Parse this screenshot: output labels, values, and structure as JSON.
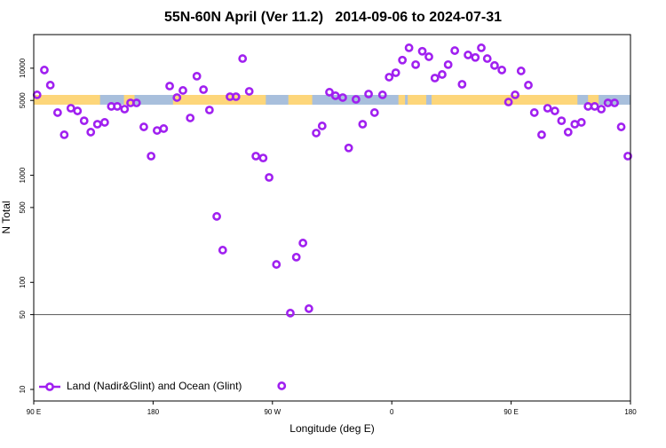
{
  "chart_data": {
    "type": "scatter",
    "title": "55N-60N April (Ver 11.2)   2014-09-06 to 2024-07-31",
    "x_label": "Longitude (deg E)",
    "y_label": "N Total",
    "log_y": true,
    "xlim": [
      90,
      540
    ],
    "ylim": [
      7.8,
      20600
    ],
    "xticks": [
      {
        "value": 90,
        "label": "90 E"
      },
      180,
      {
        "value": 270,
        "label": "90 W"
      },
      {
        "value": 360,
        "label": "0"
      },
      {
        "value": 450,
        "label": "90 E"
      },
      {
        "value": 540,
        "label": "180"
      }
    ],
    "yticks": [
      10,
      50,
      100,
      500,
      1000,
      5000,
      10000
    ],
    "hline": 50,
    "legend": "bottom-left",
    "series": [
      {
        "name": "Land (Nadir&Glint) and Ocean (Glint)",
        "color": "#a020f0",
        "x": [
          92.5,
          98,
          102.5,
          108,
          113,
          118,
          123,
          128,
          133,
          138,
          143.5,
          148.5,
          153,
          158.5,
          163,
          167.5,
          173,
          178.5,
          183,
          188,
          192.5,
          198,
          202.5,
          208,
          213,
          218,
          222.5,
          228,
          232.5,
          238,
          242.5,
          247.5,
          252.5,
          257.5,
          263,
          267.5,
          273,
          277,
          283.5,
          288,
          293,
          297.5,
          303,
          307.5,
          313,
          317.5,
          323,
          327.5,
          333,
          338,
          342.5,
          347,
          353,
          358,
          363,
          368,
          373,
          378,
          383,
          388,
          392.5,
          398,
          402.5,
          407.5,
          413,
          417.5,
          423,
          427.5,
          432,
          437.5,
          443,
          448,
          453,
          457.5,
          463,
          467.5,
          473,
          477.5,
          483,
          488,
          493,
          498,
          503,
          508,
          513,
          518,
          523,
          528,
          533,
          538
        ],
        "values": [
          5640,
          9620,
          6950,
          3850,
          2390,
          4230,
          3990,
          3230,
          2530,
          3000,
          3120,
          4400,
          4400,
          4150,
          4740,
          4740,
          2830,
          1510,
          2620,
          2730,
          6810,
          5320,
          6200,
          3430,
          8420,
          6310,
          4070,
          413,
          200,
          5420,
          5420,
          12300,
          6080,
          1510,
          1450,
          955,
          147,
          10.8,
          51.6,
          172,
          233,
          56.8,
          2480,
          2890,
          5970,
          5530,
          5320,
          1800,
          5120,
          3000,
          5740,
          3850,
          5640,
          8250,
          9070,
          11900,
          15500,
          10800,
          14400,
          12800,
          8090,
          8740,
          10800,
          14600,
          7080,
          13300,
          12600,
          15500,
          12300,
          10600,
          9620,
          4830,
          5640,
          9430,
          6950,
          3850,
          2390,
          4230,
          3990,
          3230,
          2530,
          3000,
          3120,
          4400,
          4400,
          4150,
          4740,
          4740,
          2830,
          1510
        ]
      }
    ]
  }
}
